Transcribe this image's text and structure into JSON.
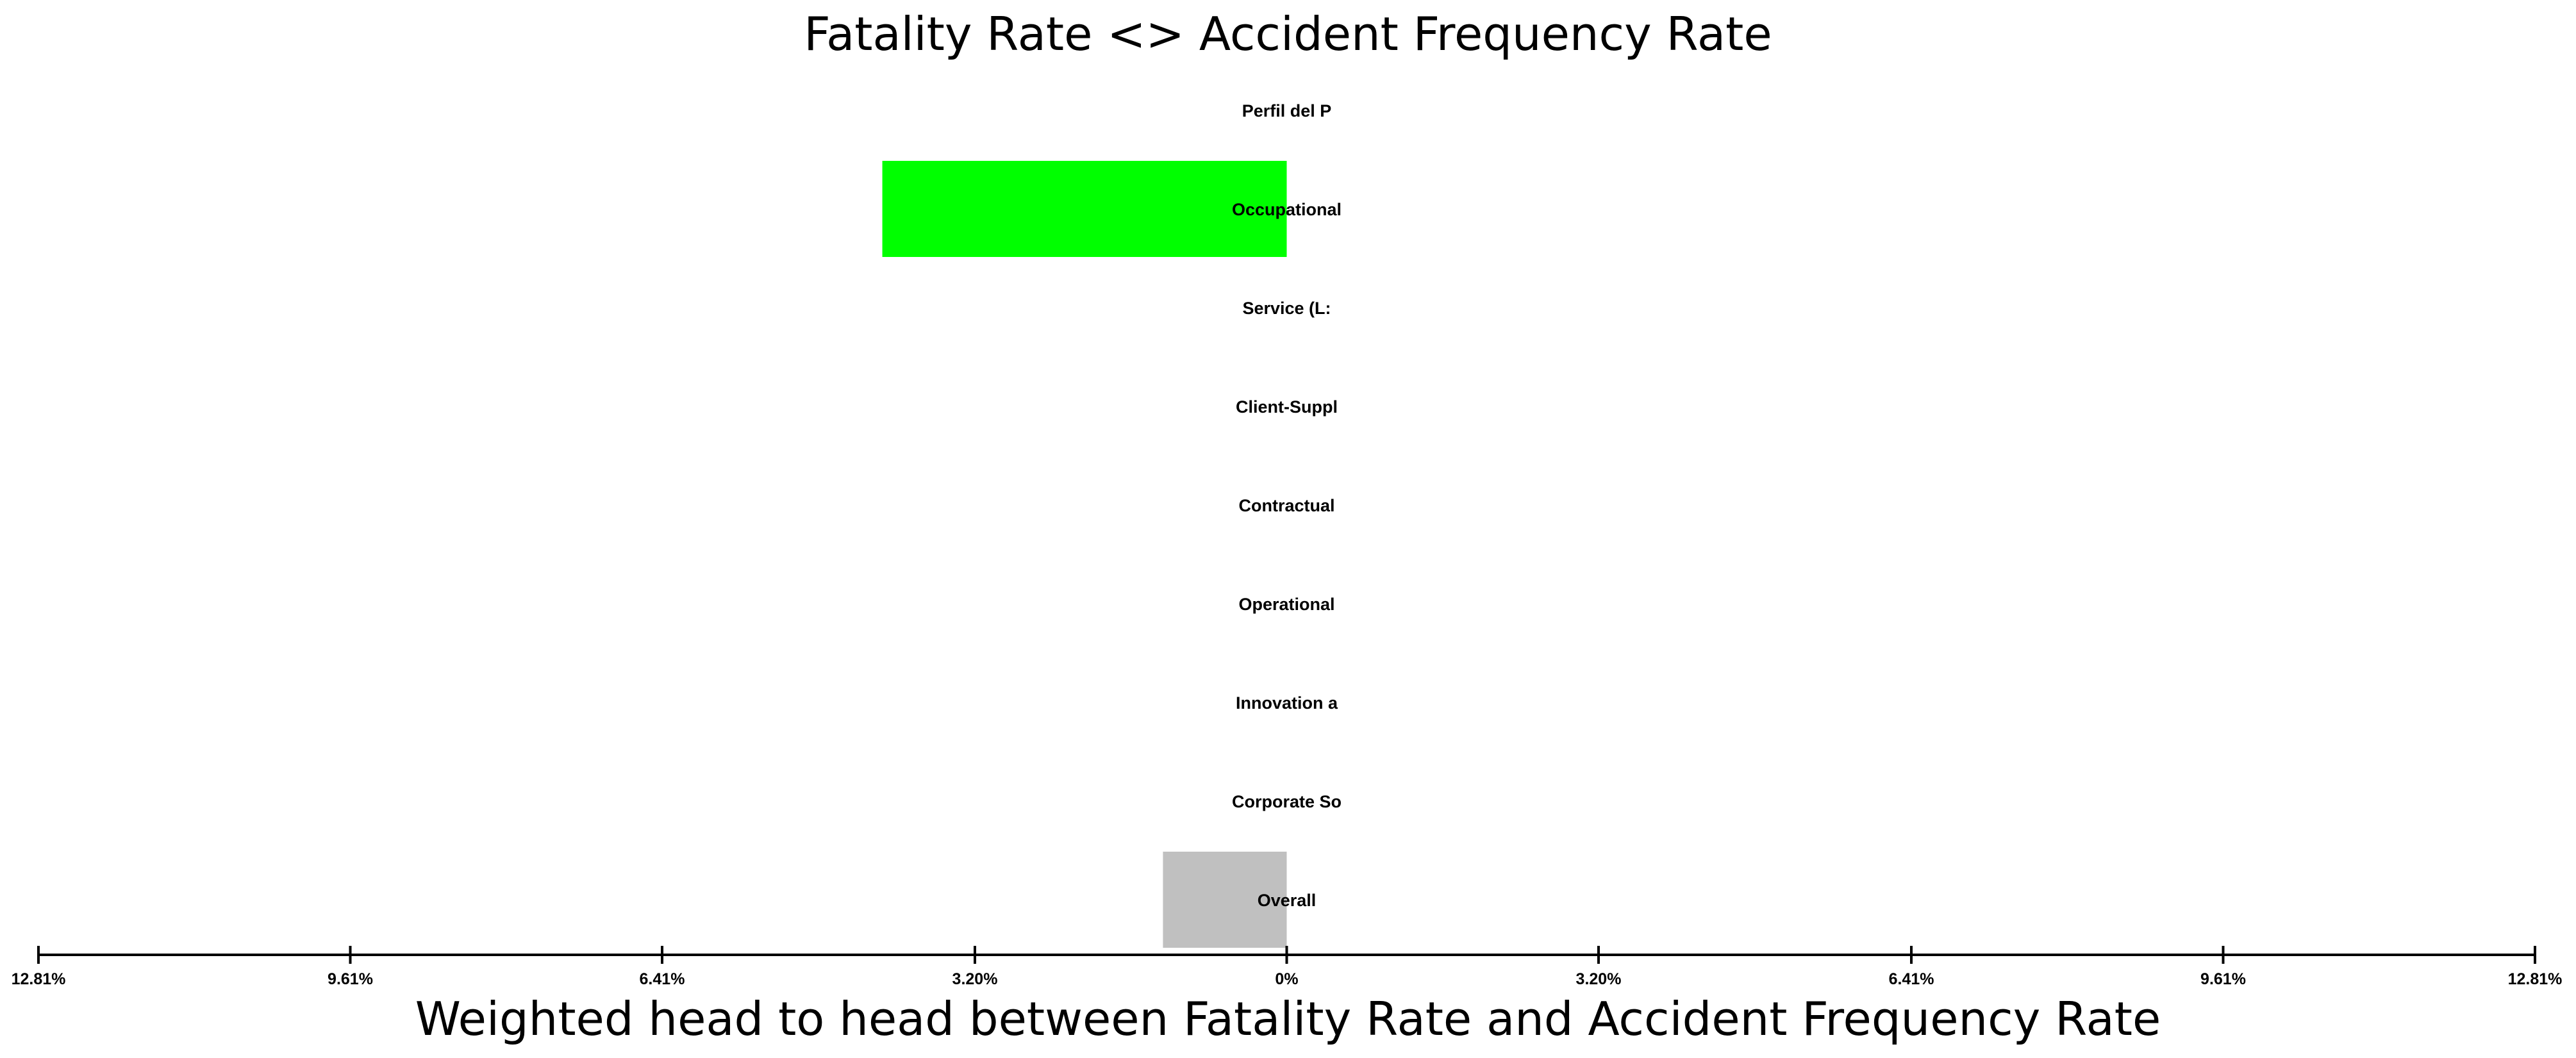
{
  "chart_data": {
    "type": "bar",
    "orientation": "horizontal-diverging",
    "title": "Fatality Rate <> Accident Frequency Rate",
    "xlabel": "Weighted head to head between Fatality Rate and Accident Frequency Rate",
    "categories": [
      "Perfil del P",
      "Occupational",
      "Service (L:",
      "Client-Suppl",
      "Contractual",
      "Operational",
      "Innovation a",
      "Corporate So",
      "Overall"
    ],
    "values": [
      0,
      -4.15,
      0,
      0,
      0,
      0,
      0,
      0,
      -1.27
    ],
    "bar_colors": [
      "#00ff00",
      "#00ff00",
      "#00ff00",
      "#00ff00",
      "#00ff00",
      "#00ff00",
      "#00ff00",
      "#00ff00",
      "#c0c0c0"
    ],
    "xlim": [
      -12.81,
      12.81
    ],
    "x_ticks": [
      -12.81,
      -9.61,
      -6.41,
      -3.2,
      0,
      3.2,
      6.41,
      9.61,
      12.81
    ],
    "x_tick_labels": [
      "12.81%",
      "9.61%",
      "6.41%",
      "3.20%",
      "0%",
      "3.20%",
      "6.41%",
      "9.61%",
      "12.81%"
    ],
    "grid": false,
    "legend": "none"
  }
}
